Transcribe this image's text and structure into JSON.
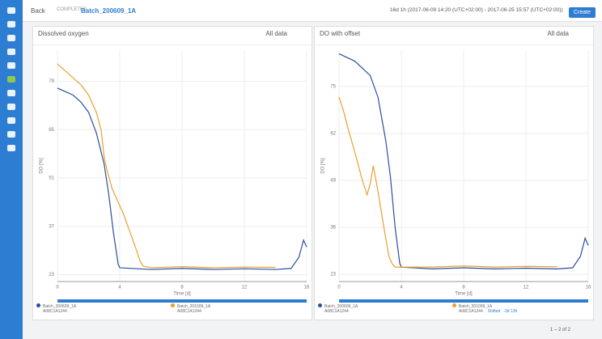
{
  "header": {
    "back": "Back",
    "status": "COMPLETED",
    "title": "Batch_200609_1A",
    "range": "16d 1h (2017-06-09 14:20 (UTC+02:00) - 2017-06-25 15:57 (UTC+02:00))",
    "create": "Create"
  },
  "panels": [
    {
      "title": "Dissolved oxygen",
      "filter": "All data",
      "legend": [
        {
          "device": "A08C1A1244"
        },
        {
          "device": "A08C1A1244"
        }
      ],
      "chart_data": {
        "type": "line",
        "x_label": "Time [d]",
        "y_label": "DO [%]",
        "xlim": [
          0,
          16
        ],
        "ylim": [
          21,
          88
        ],
        "xticks": [
          0,
          4,
          8,
          12,
          16
        ],
        "yticks": [
          23,
          37,
          51,
          65,
          79
        ],
        "grid": true,
        "series": [
          {
            "name": "Batch_200609_1A",
            "color": "#2a4f9e",
            "x": [
              0,
              0.5,
              1,
              1.5,
              2,
              2.5,
              3,
              3.3,
              3.6,
              3.9,
              4,
              6,
              8,
              10,
              12,
              14,
              15,
              15.5,
              15.8,
              16
            ],
            "values": [
              77,
              76,
              75,
              73,
              70,
              64,
              55,
              46,
              35,
              26,
              25,
              24.5,
              24.8,
              24.5,
              24.7,
              24.5,
              24.8,
              28,
              33,
              31
            ]
          },
          {
            "name": "Batch_201009_1A",
            "color": "#e8a030",
            "x": [
              0,
              0.5,
              1,
              1.5,
              2,
              2.5,
              2.8,
              3,
              3.2,
              3.5,
              3.8,
              4.2,
              4.6,
              5,
              5.3,
              5.5,
              6,
              8,
              10,
              12,
              14
            ],
            "values": [
              84,
              82,
              80,
              78,
              75,
              70,
              65,
              57,
              53,
              48,
              45,
              41,
              36,
              31,
              27,
              25.5,
              25,
              25.3,
              25,
              25.2,
              25.1
            ]
          }
        ]
      }
    },
    {
      "title": "DO with offset",
      "filter": "All data",
      "legend": [
        {
          "device": "A08C1A1244"
        },
        {
          "device": "A08C1A1244",
          "shift_label": "Shifted",
          "shift": "-3d 13h"
        }
      ],
      "chart_data": {
        "type": "line",
        "x_label": "Time [d]",
        "y_label": "DO [%]",
        "xlim": [
          0,
          16
        ],
        "ylim": [
          21,
          85
        ],
        "xticks": [
          0,
          4,
          8,
          12,
          16
        ],
        "yticks": [
          23,
          36,
          49,
          62,
          75
        ],
        "grid": true,
        "series": [
          {
            "name": "Batch_200609_1A",
            "color": "#2a4f9e",
            "x": [
              0,
              0.5,
              1,
              1.5,
              2,
              2.5,
              3,
              3.3,
              3.6,
              3.9,
              4,
              6,
              8,
              10,
              12,
              14,
              15,
              15.5,
              15.8,
              16
            ],
            "values": [
              84,
              83,
              82,
              80,
              78,
              72,
              60,
              50,
              36,
              26,
              25,
              24.5,
              24.8,
              24.5,
              24.7,
              24.5,
              24.8,
              28,
              33,
              31
            ]
          },
          {
            "name": "Batch_201009_1A",
            "color": "#e8a030",
            "x": [
              0,
              0.3,
              0.6,
              1,
              1.5,
              1.8,
              2,
              2.2,
              2.5,
              2.8,
              3,
              3.2,
              3.4,
              3.6,
              6,
              8,
              10,
              12,
              14
            ],
            "values": [
              72,
              68,
              63,
              57,
              49,
              45,
              48,
              53,
              46,
              38,
              33,
              28,
              26,
              25,
              25,
              25.3,
              25,
              25.2,
              25.1
            ]
          }
        ]
      }
    }
  ],
  "footer": {
    "pagination": "1 – 2 of 2"
  }
}
